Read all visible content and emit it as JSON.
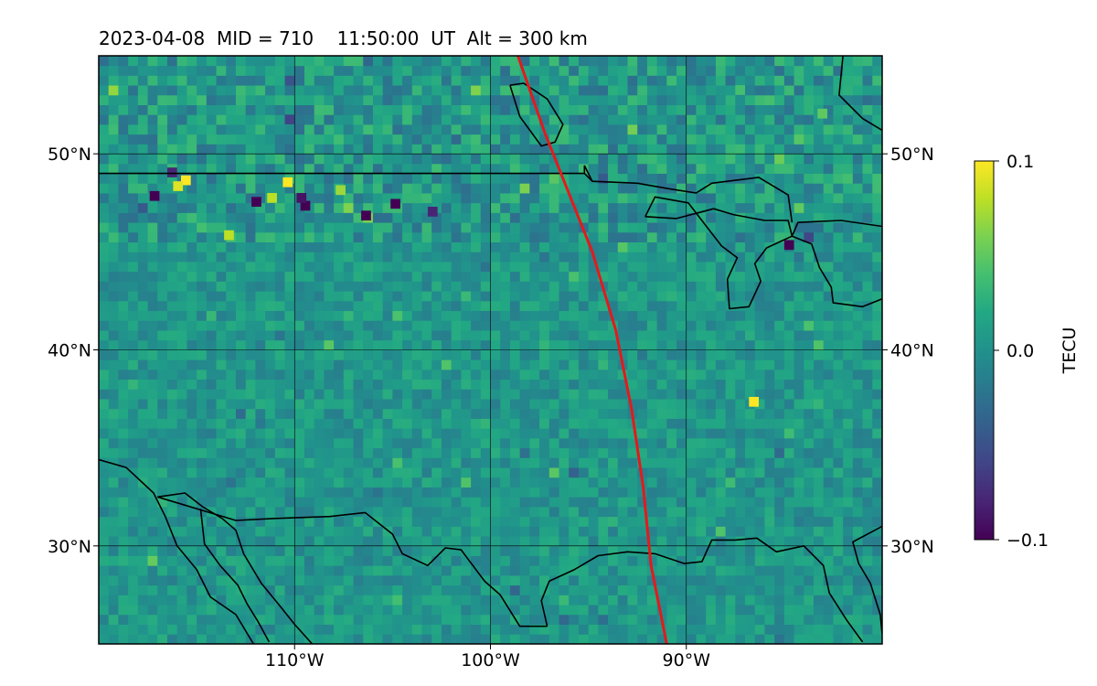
{
  "chart_data": {
    "type": "heatmap",
    "title": "2023-04-08  MID = 710    11:50:00  UT  Alt = 300 km",
    "xlim": [
      -120,
      -80
    ],
    "ylim": [
      25,
      55
    ],
    "x_ticks": [
      {
        "value": -110,
        "label": "110°W"
      },
      {
        "value": -100,
        "label": "100°W"
      },
      {
        "value": -90,
        "label": "90°W"
      }
    ],
    "y_ticks": [
      {
        "value": 30,
        "label": "30°N"
      },
      {
        "value": 40,
        "label": "40°N"
      },
      {
        "value": 50,
        "label": "50°N"
      }
    ],
    "grid": true,
    "colormap": "viridis",
    "colorbar": {
      "label": "TECU",
      "min": -0.1,
      "max": 0.1,
      "ticks": [
        {
          "value": 0.1,
          "label": "0.1"
        },
        {
          "value": 0.0,
          "label": "0.0"
        },
        {
          "value": -0.1,
          "label": "−0.1"
        }
      ]
    },
    "track": {
      "color": "#e31a1c",
      "points": [
        [
          -98.6,
          55
        ],
        [
          -97.2,
          51
        ],
        [
          -96.0,
          48
        ],
        [
          -94.8,
          45
        ],
        [
          -93.6,
          41
        ],
        [
          -92.8,
          37
        ],
        [
          -92.2,
          33
        ],
        [
          -91.8,
          29
        ],
        [
          -91.0,
          25
        ]
      ]
    },
    "coastlines": [
      [
        [
          -120,
          34.4
        ],
        [
          -118.6,
          34
        ],
        [
          -117.2,
          32.7
        ],
        [
          -116.6,
          31.5
        ],
        [
          -116,
          30
        ],
        [
          -115,
          28.8
        ],
        [
          -114.3,
          27.4
        ],
        [
          -113,
          26.5
        ],
        [
          -112.1,
          25
        ]
      ],
      [
        [
          -117,
          32.5
        ],
        [
          -115.6,
          32.7
        ],
        [
          -114.7,
          32
        ],
        [
          -113.7,
          31.4
        ],
        [
          -113,
          30.8
        ],
        [
          -112.6,
          29.6
        ],
        [
          -111.7,
          28.1
        ],
        [
          -110.8,
          27
        ],
        [
          -110,
          26
        ],
        [
          -109.1,
          25
        ]
      ],
      [
        [
          -114.8,
          31.9
        ],
        [
          -114.6,
          30.1
        ],
        [
          -113.8,
          29
        ],
        [
          -112.9,
          28
        ],
        [
          -112.4,
          27
        ],
        [
          -111.9,
          26.2
        ],
        [
          -111.3,
          25.1
        ]
      ],
      [
        [
          -117,
          32.5
        ],
        [
          -113,
          31.3
        ],
        [
          -111,
          31.4
        ],
        [
          -108.2,
          31.5
        ],
        [
          -106.4,
          31.7
        ],
        [
          -105,
          30.6
        ],
        [
          -104.5,
          29.6
        ],
        [
          -103.2,
          29
        ],
        [
          -102.3,
          29.9
        ],
        [
          -101.5,
          29.8
        ],
        [
          -100.3,
          28.2
        ],
        [
          -99.5,
          27.5
        ],
        [
          -98.5,
          25.9
        ],
        [
          -97.1,
          25.9
        ]
      ],
      [
        [
          -97.1,
          25.9
        ],
        [
          -97.4,
          27.2
        ],
        [
          -97.0,
          28.2
        ],
        [
          -95.7,
          28.8
        ],
        [
          -94.5,
          29.5
        ],
        [
          -93.0,
          29.7
        ],
        [
          -91.6,
          29.6
        ],
        [
          -90.1,
          29.1
        ],
        [
          -89.2,
          29.2
        ],
        [
          -88.7,
          30.3
        ],
        [
          -87.5,
          30.3
        ],
        [
          -86.4,
          30.4
        ],
        [
          -85.4,
          29.7
        ],
        [
          -84.0,
          30.0
        ],
        [
          -83.0,
          29.0
        ],
        [
          -82.7,
          27.6
        ],
        [
          -81.8,
          26.2
        ],
        [
          -81.0,
          25.1
        ]
      ],
      [
        [
          -80,
          31
        ],
        [
          -81.5,
          30.2
        ],
        [
          -81.2,
          29.1
        ],
        [
          -80.6,
          28.1
        ],
        [
          -80.1,
          26.5
        ],
        [
          -80,
          25.5
        ]
      ],
      [
        [
          -80,
          46.3
        ],
        [
          -82.1,
          46.6
        ],
        [
          -84.3,
          46.5
        ],
        [
          -84.6,
          45.8
        ],
        [
          -83.6,
          45.4
        ],
        [
          -83.2,
          44.2
        ],
        [
          -82.6,
          43.2
        ],
        [
          -82.5,
          42.4
        ],
        [
          -81.0,
          42.2
        ],
        [
          -80,
          42.6
        ]
      ],
      [
        [
          -92.1,
          46.8
        ],
        [
          -90.5,
          46.7
        ],
        [
          -88.6,
          47.2
        ],
        [
          -87.6,
          46.9
        ],
        [
          -86.0,
          46.6
        ],
        [
          -84.8,
          46.6
        ],
        [
          -84.6,
          45.8
        ],
        [
          -85.9,
          45.2
        ],
        [
          -86.5,
          44.4
        ],
        [
          -86.2,
          43.5
        ],
        [
          -86.8,
          42.2
        ],
        [
          -87.8,
          42.1
        ],
        [
          -87.9,
          43.6
        ],
        [
          -87.4,
          44.7
        ],
        [
          -88.2,
          45.3
        ],
        [
          -89.9,
          47.5
        ],
        [
          -91.6,
          47.8
        ],
        [
          -92.1,
          46.8
        ]
      ],
      [
        [
          -95.2,
          49
        ],
        [
          -94.8,
          48.6
        ],
        [
          -92.5,
          48.5
        ],
        [
          -90.8,
          48.2
        ],
        [
          -89.5,
          48.0
        ],
        [
          -88.7,
          48.5
        ],
        [
          -86.3,
          48.8
        ],
        [
          -84.8,
          47.9
        ],
        [
          -84.6,
          46.5
        ]
      ],
      [
        [
          -82,
          55
        ],
        [
          -82.2,
          53
        ],
        [
          -81.0,
          51.8
        ],
        [
          -80,
          51.2
        ]
      ],
      [
        [
          -99,
          53.5
        ],
        [
          -98.5,
          51.9
        ],
        [
          -97.4,
          50.4
        ],
        [
          -96.7,
          50.6
        ],
        [
          -96.3,
          51.5
        ],
        [
          -97.1,
          52.8
        ],
        [
          -98.3,
          53.6
        ],
        [
          -99,
          53.5
        ]
      ]
    ],
    "borders": [
      [
        [
          -120,
          49
        ],
        [
          -95.2,
          49
        ],
        [
          -95.2,
          49.4
        ],
        [
          -94.8,
          48.6
        ]
      ]
    ],
    "anomalies": [
      {
        "lon": -115.8,
        "lat": 48.4,
        "value": 0.1
      },
      {
        "lon": -116.2,
        "lat": 48.1,
        "value": 0.09
      },
      {
        "lon": -110.6,
        "lat": 48.3,
        "value": 0.1
      },
      {
        "lon": -111.4,
        "lat": 47.5,
        "value": 0.08
      },
      {
        "lon": -107.9,
        "lat": 47.9,
        "value": 0.07
      },
      {
        "lon": -113.6,
        "lat": 45.6,
        "value": 0.08
      },
      {
        "lon": -117.4,
        "lat": 47.6,
        "value": -0.1
      },
      {
        "lon": -112.2,
        "lat": 47.3,
        "value": -0.1
      },
      {
        "lon": -109.7,
        "lat": 47.1,
        "value": -0.1
      },
      {
        "lon": -109.9,
        "lat": 47.5,
        "value": -0.09
      },
      {
        "lon": -106.6,
        "lat": 46.6,
        "value": -0.1
      },
      {
        "lon": -105.1,
        "lat": 47.2,
        "value": -0.1
      },
      {
        "lon": -103.2,
        "lat": 46.8,
        "value": -0.08
      },
      {
        "lon": -116.5,
        "lat": 48.8,
        "value": -0.08
      },
      {
        "lon": -110.5,
        "lat": 51.5,
        "value": -0.06
      },
      {
        "lon": -85.0,
        "lat": 45.1,
        "value": -0.1
      },
      {
        "lon": -86.8,
        "lat": 37.1,
        "value": 0.1
      },
      {
        "lon": -83.3,
        "lat": 51.8,
        "value": 0.05
      },
      {
        "lon": -87.5,
        "lat": 53.0,
        "value": 0.04
      }
    ]
  }
}
